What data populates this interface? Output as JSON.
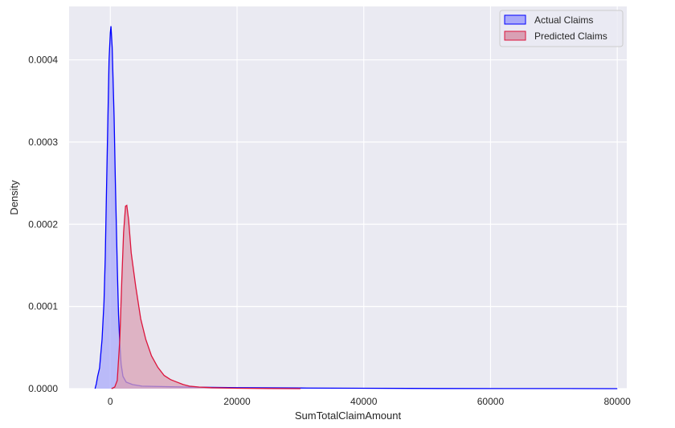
{
  "chart_data": {
    "type": "area",
    "chart_kind": "kde density",
    "title": "",
    "xlabel": "SumTotalClaimAmount",
    "ylabel": "Density",
    "xlim": [
      -6500,
      81500
    ],
    "ylim": [
      0,
      0.000465
    ],
    "x_ticks": [
      0,
      20000,
      40000,
      60000,
      80000
    ],
    "x_tick_labels": [
      "0",
      "20000",
      "40000",
      "60000",
      "80000"
    ],
    "y_ticks": [
      0,
      0.0001,
      0.0002,
      0.0003,
      0.0004
    ],
    "y_tick_labels": [
      "0.0000",
      "0.0001",
      "0.0002",
      "0.0003",
      "0.0004"
    ],
    "grid": true,
    "legend_position": "top-right",
    "background": "#eaeaf2",
    "series": [
      {
        "name": "Actual Claims",
        "color": "#0000ff",
        "fill": "#a9a9f9",
        "points": [
          [
            -2400,
            0
          ],
          [
            -2200,
            6e-06
          ],
          [
            -2000,
            1.5e-05
          ],
          [
            -1700,
            2.5e-05
          ],
          [
            -1300,
            6e-05
          ],
          [
            -1000,
            0.000105
          ],
          [
            -800,
            0.00016
          ],
          [
            -600,
            0.00024
          ],
          [
            -400,
            0.00032
          ],
          [
            -200,
            0.0004
          ],
          [
            0,
            0.000433
          ],
          [
            100,
            0.000441
          ],
          [
            300,
            0.000415
          ],
          [
            600,
            0.00033
          ],
          [
            800,
            0.00025
          ],
          [
            1100,
            0.00015
          ],
          [
            1300,
            9e-05
          ],
          [
            1500,
            5.5e-05
          ],
          [
            1700,
            3e-05
          ],
          [
            2000,
            1.5e-05
          ],
          [
            2500,
            8e-06
          ],
          [
            3500,
            5e-06
          ],
          [
            5000,
            3e-06
          ],
          [
            8000,
            2.5e-06
          ],
          [
            12000,
            2e-06
          ],
          [
            20000,
            1.2e-06
          ],
          [
            30000,
            8e-07
          ],
          [
            40000,
            5e-07
          ],
          [
            52000,
            2e-07
          ],
          [
            62000,
            1e-07
          ],
          [
            72000,
            5e-08
          ],
          [
            80000,
            0
          ]
        ]
      },
      {
        "name": "Predicted Claims",
        "color": "#dc143c",
        "fill": "#d9a0b4",
        "points": [
          [
            200,
            0
          ],
          [
            700,
            2e-06
          ],
          [
            1100,
            1e-05
          ],
          [
            1500,
            6e-05
          ],
          [
            1800,
            0.00013
          ],
          [
            2100,
            0.00019
          ],
          [
            2400,
            0.000222
          ],
          [
            2600,
            0.000223
          ],
          [
            2900,
            0.000205
          ],
          [
            3300,
            0.000165
          ],
          [
            4000,
            0.000125
          ],
          [
            4800,
            8.5e-05
          ],
          [
            5600,
            6e-05
          ],
          [
            6500,
            4e-05
          ],
          [
            7500,
            2.6e-05
          ],
          [
            8500,
            1.6e-05
          ],
          [
            9500,
            1.1e-05
          ],
          [
            10500,
            8e-06
          ],
          [
            11500,
            5e-06
          ],
          [
            12500,
            3e-06
          ],
          [
            14000,
            2e-06
          ],
          [
            16000,
            1.2e-06
          ],
          [
            20000,
            5e-07
          ],
          [
            25000,
            2e-07
          ],
          [
            30000,
            0
          ]
        ]
      }
    ]
  }
}
